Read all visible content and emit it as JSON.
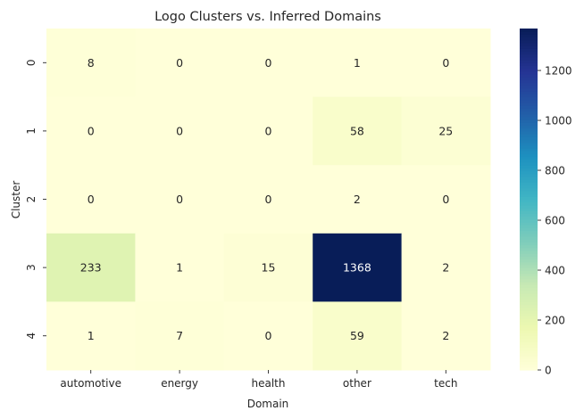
{
  "chart_data": {
    "type": "heatmap",
    "title": "Logo Clusters vs. Inferred Domains",
    "xlabel": "Domain",
    "ylabel": "Cluster",
    "x_categories": [
      "automotive",
      "energy",
      "health",
      "other",
      "tech"
    ],
    "y_categories": [
      "0",
      "1",
      "2",
      "3",
      "4"
    ],
    "values": [
      [
        8,
        0,
        0,
        1,
        0
      ],
      [
        0,
        0,
        0,
        58,
        25
      ],
      [
        0,
        0,
        0,
        2,
        0
      ],
      [
        233,
        1,
        15,
        1368,
        2
      ],
      [
        1,
        7,
        0,
        59,
        2
      ]
    ],
    "colorbar": {
      "min": 0,
      "max": 1368,
      "ticks": [
        0,
        200,
        400,
        600,
        800,
        1000,
        1200
      ],
      "colormap": "YlGnBu"
    },
    "grid": false
  }
}
